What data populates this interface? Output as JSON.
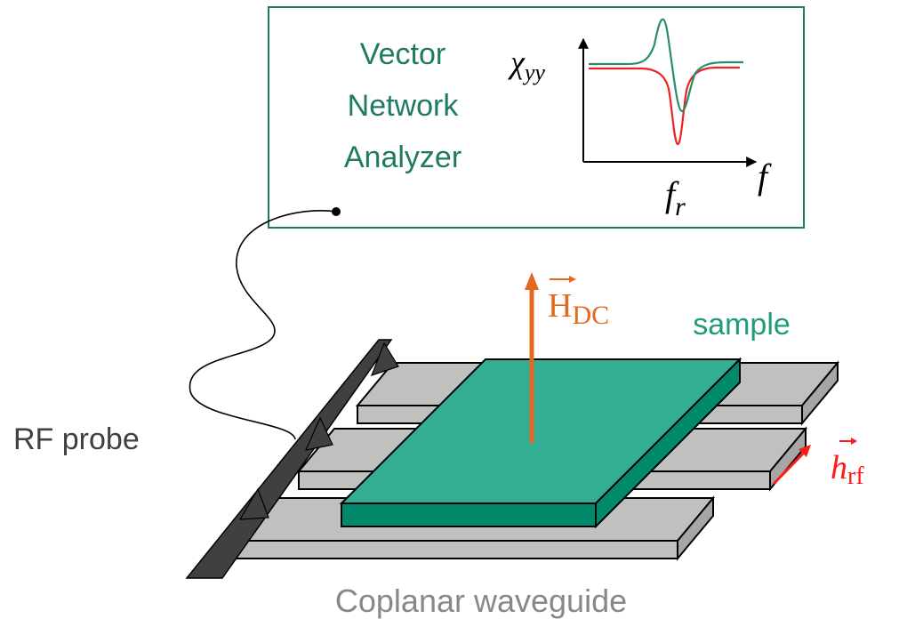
{
  "vna": {
    "line1": "Vector",
    "line2": "Network",
    "line3": "Analyzer",
    "y_axis_symbol": "χ",
    "y_axis_subscript": "yy",
    "x_axis_symbol": "f",
    "resonance_symbol": "f",
    "resonance_subscript": "r"
  },
  "field_dc": {
    "symbol": "H",
    "subscript": "DC"
  },
  "field_rf": {
    "symbol": "h",
    "subscript": "rf"
  },
  "labels": {
    "sample": "sample",
    "rf_probe": "RF probe",
    "waveguide": "Coplanar waveguide"
  },
  "colors": {
    "frame": "#1f7a62",
    "sample_top": "#33ad93",
    "sample_side": "#008a6b",
    "strip_top": "#c0c0c0",
    "strip_side": "#a6a6a6",
    "probe": "#404040",
    "dc_field": "#e2691f",
    "rf_field": "#ff1a1a",
    "curve_green": "#2e8b6a",
    "curve_red": "#ee2222",
    "caption": "#888888"
  }
}
